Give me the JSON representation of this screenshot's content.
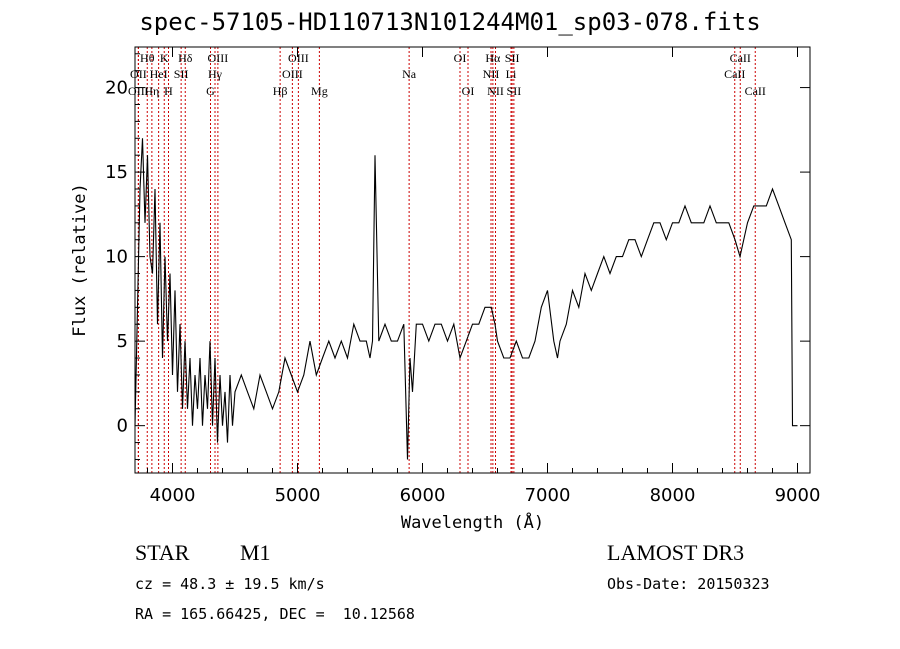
{
  "chart_data": {
    "type": "line",
    "title": "spec-57105-HD110713N101244M01_sp03-078.fits",
    "xlabel": "Wavelength (Å)",
    "ylabel": "Flux (relative)",
    "xlim": [
      3700,
      9100
    ],
    "ylim": [
      -2.8,
      22.4
    ],
    "xticks": [
      4000,
      5000,
      6000,
      7000,
      8000,
      9000
    ],
    "yticks": [
      0,
      5,
      10,
      15,
      20
    ],
    "line_color": "#000000",
    "marker_color": "#cc0000",
    "series": [
      {
        "x": [
          3700,
          3720,
          3740,
          3760,
          3780,
          3800,
          3820,
          3840,
          3860,
          3880,
          3900,
          3920,
          3940,
          3960,
          3980,
          4000,
          4020,
          4040,
          4060,
          4080,
          4100,
          4120,
          4140,
          4160,
          4180,
          4200,
          4220,
          4240,
          4260,
          4280,
          4300,
          4320,
          4340,
          4360,
          4380,
          4400,
          4420,
          4440,
          4460,
          4480,
          4500,
          4550,
          4600,
          4650,
          4700,
          4750,
          4800,
          4850,
          4900,
          4950,
          5000,
          5050,
          5100,
          5150,
          5200,
          5250,
          5300,
          5350,
          5400,
          5450,
          5500,
          5550,
          5580,
          5600,
          5620,
          5650,
          5700,
          5750,
          5800,
          5850,
          5880,
          5900,
          5920,
          5950,
          6000,
          6050,
          6100,
          6150,
          6200,
          6250,
          6300,
          6350,
          6400,
          6450,
          6500,
          6550,
          6580,
          6600,
          6650,
          6700,
          6750,
          6800,
          6850,
          6900,
          6950,
          7000,
          7050,
          7080,
          7100,
          7150,
          7200,
          7250,
          7300,
          7350,
          7400,
          7450,
          7500,
          7550,
          7600,
          7650,
          7700,
          7750,
          7800,
          7850,
          7900,
          7950,
          8000,
          8050,
          8100,
          8150,
          8200,
          8250,
          8300,
          8350,
          8400,
          8450,
          8500,
          8540,
          8600,
          8650,
          8700,
          8750,
          8800,
          8850,
          8900,
          8950,
          8960,
          9000
        ],
        "y": [
          0,
          7,
          14,
          17,
          12,
          16,
          10,
          9,
          14,
          6,
          12,
          4,
          10,
          5,
          9,
          3,
          8,
          2,
          6,
          1,
          5,
          1,
          4,
          0,
          3,
          1,
          4,
          0,
          3,
          1,
          5,
          0,
          4,
          -1,
          3,
          0,
          2,
          -1,
          3,
          0,
          2,
          3,
          2,
          1,
          3,
          2,
          1,
          2,
          4,
          3,
          2,
          3,
          5,
          3,
          4,
          5,
          4,
          5,
          4,
          6,
          5,
          5,
          4,
          5,
          16,
          5,
          6,
          5,
          5,
          6,
          -2,
          4,
          2,
          6,
          6,
          5,
          6,
          6,
          5,
          6,
          4,
          5,
          6,
          6,
          7,
          7,
          6,
          5,
          4,
          4,
          5,
          4,
          4,
          5,
          7,
          8,
          5,
          4,
          5,
          6,
          8,
          7,
          9,
          8,
          9,
          10,
          9,
          10,
          10,
          11,
          11,
          10,
          11,
          12,
          12,
          11,
          12,
          12,
          13,
          12,
          12,
          12,
          13,
          12,
          12,
          12,
          11,
          10,
          12,
          13,
          13,
          13,
          14,
          13,
          12,
          11,
          0,
          0
        ]
      }
    ],
    "lines": [
      {
        "label": "Hθ",
        "x": 3798,
        "row": 1
      },
      {
        "label": "OII",
        "x": 3727,
        "row": 2
      },
      {
        "label": "OIII",
        "x": 3727,
        "row": 3
      },
      {
        "label": "K",
        "x": 3934,
        "row": 1
      },
      {
        "label": "HeI",
        "x": 3889,
        "row": 2
      },
      {
        "label": "Hη",
        "x": 3835,
        "row": 3
      },
      {
        "label": "SII",
        "x": 4069,
        "row": 2
      },
      {
        "label": "H",
        "x": 3968,
        "row": 3
      },
      {
        "label": "Hδ",
        "x": 4102,
        "row": 1
      },
      {
        "label": "OIII",
        "x": 4363,
        "row": 1
      },
      {
        "label": "Hγ",
        "x": 4340,
        "row": 2
      },
      {
        "label": "G",
        "x": 4304,
        "row": 3
      },
      {
        "label": "Hβ",
        "x": 4861,
        "row": 3
      },
      {
        "label": "OIII",
        "x": 5007,
        "row": 1
      },
      {
        "label": "OIII",
        "x": 4959,
        "row": 2
      },
      {
        "label": "Mg",
        "x": 5175,
        "row": 3
      },
      {
        "label": "Na",
        "x": 5893,
        "row": 2
      },
      {
        "label": "OI",
        "x": 6300,
        "row": 1
      },
      {
        "label": "OI",
        "x": 6364,
        "row": 3
      },
      {
        "label": "Hα",
        "x": 6563,
        "row": 1
      },
      {
        "label": "NII",
        "x": 6548,
        "row": 2
      },
      {
        "label": "NII",
        "x": 6584,
        "row": 3
      },
      {
        "label": "SII",
        "x": 6717,
        "row": 1
      },
      {
        "label": "Li",
        "x": 6708,
        "row": 2
      },
      {
        "label": "SII",
        "x": 6731,
        "row": 3
      },
      {
        "label": "CaII",
        "x": 8542,
        "row": 1
      },
      {
        "label": "CaII",
        "x": 8498,
        "row": 2
      },
      {
        "label": "CaII",
        "x": 8662,
        "row": 3
      }
    ]
  },
  "info": {
    "class": "STAR",
    "subclass": "M1",
    "survey": "LAMOST DR3",
    "cz": "cz = 48.3 ± 19.5 km/s",
    "obs_date": "Obs-Date: 20150323",
    "radec": "RA = 165.66425, DEC =  10.12568"
  }
}
